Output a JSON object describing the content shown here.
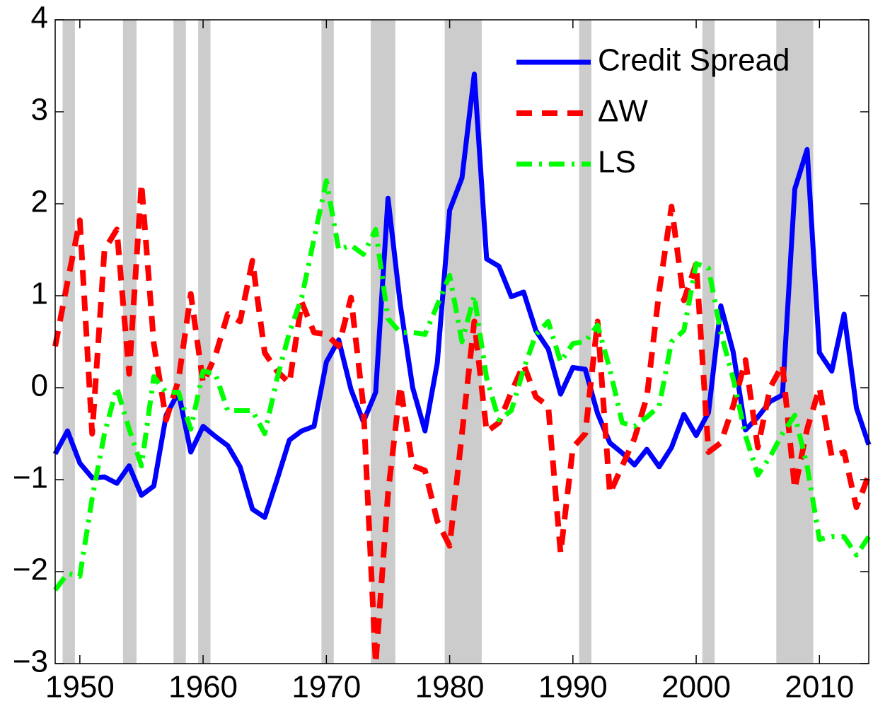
{
  "chart_data": {
    "type": "line",
    "x": [
      1948,
      1949,
      1950,
      1951,
      1952,
      1953,
      1954,
      1955,
      1956,
      1957,
      1958,
      1959,
      1960,
      1961,
      1962,
      1963,
      1964,
      1965,
      1966,
      1967,
      1968,
      1969,
      1970,
      1971,
      1972,
      1973,
      1974,
      1975,
      1976,
      1977,
      1978,
      1979,
      1980,
      1981,
      1982,
      1983,
      1984,
      1985,
      1986,
      1987,
      1988,
      1989,
      1990,
      1991,
      1992,
      1993,
      1994,
      1995,
      1996,
      1997,
      1998,
      1999,
      2000,
      2001,
      2002,
      2003,
      2004,
      2005,
      2006,
      2007,
      2008,
      2009,
      2010,
      2011,
      2012,
      2013,
      2014
    ],
    "series": [
      {
        "name": "Credit Spread",
        "color": "#0000ff",
        "style": "solid",
        "values": [
          -0.72,
          -0.47,
          -0.82,
          -0.98,
          -0.97,
          -1.04,
          -0.85,
          -1.17,
          -1.07,
          -0.3,
          -0.05,
          -0.7,
          -0.42,
          -0.53,
          -0.63,
          -0.86,
          -1.32,
          -1.41,
          -1.0,
          -0.57,
          -0.47,
          -0.42,
          0.28,
          0.52,
          -0.02,
          -0.37,
          -0.05,
          2.06,
          0.9,
          0.0,
          -0.47,
          0.27,
          1.93,
          2.28,
          3.41,
          1.4,
          1.32,
          0.99,
          1.04,
          0.62,
          0.42,
          -0.07,
          0.22,
          0.2,
          -0.28,
          -0.6,
          -0.71,
          -0.84,
          -0.67,
          -0.86,
          -0.65,
          -0.29,
          -0.52,
          -0.27,
          0.89,
          0.39,
          -0.46,
          -0.32,
          -0.15,
          -0.08,
          2.16,
          2.59,
          0.38,
          0.18,
          0.8,
          -0.22,
          -0.62
        ]
      },
      {
        "name": "ΔW",
        "color": "#ff0000",
        "style": "dashed",
        "values": [
          0.45,
          1.15,
          1.82,
          -0.5,
          1.5,
          1.72,
          0.15,
          2.22,
          0.48,
          -0.35,
          0.08,
          1.02,
          0.05,
          0.35,
          0.8,
          0.72,
          1.38,
          0.38,
          0.18,
          0.05,
          0.93,
          0.6,
          0.58,
          0.45,
          0.98,
          -0.2,
          -3.0,
          -1.15,
          0.02,
          -0.85,
          -0.9,
          -1.45,
          -1.72,
          -0.5,
          0.72,
          -0.48,
          -0.38,
          -0.05,
          0.25,
          -0.1,
          -0.2,
          -1.8,
          -0.65,
          -0.5,
          0.72,
          -1.15,
          -0.85,
          -0.55,
          -0.1,
          1.05,
          1.97,
          0.95,
          1.35,
          -0.7,
          -0.6,
          -0.2,
          0.3,
          -0.65,
          0.0,
          0.25,
          -1.1,
          -0.45,
          0.0,
          -0.75,
          -0.7,
          -1.3,
          -0.95
        ]
      },
      {
        "name": "LS",
        "color": "#00ff00",
        "style": "dashdot",
        "values": [
          -2.2,
          -2.02,
          -2.05,
          -1.2,
          -0.5,
          0.0,
          -0.45,
          -0.85,
          0.12,
          -0.05,
          -0.05,
          -0.45,
          0.18,
          0.15,
          -0.25,
          -0.25,
          -0.25,
          -0.5,
          0.1,
          0.6,
          0.98,
          1.62,
          2.25,
          1.5,
          1.55,
          1.45,
          1.72,
          0.75,
          0.6,
          0.6,
          0.58,
          0.9,
          1.22,
          0.5,
          1.0,
          0.1,
          -0.35,
          -0.25,
          0.2,
          0.58,
          0.72,
          0.28,
          0.48,
          0.5,
          0.68,
          0.2,
          -0.38,
          -0.42,
          -0.32,
          -0.2,
          0.5,
          0.62,
          1.35,
          1.3,
          0.6,
          0.1,
          -0.52,
          -0.95,
          -0.75,
          -0.5,
          -0.3,
          -0.85,
          -1.65,
          -1.62,
          -1.62,
          -1.82,
          -1.62
        ]
      }
    ],
    "recessions": [
      [
        1948.6,
        1949.6
      ],
      [
        1953.5,
        1954.6
      ],
      [
        1957.6,
        1958.6
      ],
      [
        1959.6,
        1960.6
      ],
      [
        1969.6,
        1970.6
      ],
      [
        1973.6,
        1975.6
      ],
      [
        1979.6,
        1982.6
      ],
      [
        1990.5,
        1991.5
      ],
      [
        2000.5,
        2001.5
      ],
      [
        2006.5,
        2009.5
      ]
    ],
    "recession_color": "#cccccc",
    "xlim": [
      1948,
      2014
    ],
    "ylim": [
      -3,
      4
    ],
    "xticks": [
      1950,
      1960,
      1970,
      1980,
      1990,
      2000,
      2010
    ],
    "yticks": [
      {
        "value": -3,
        "label": "−3"
      },
      {
        "value": -2,
        "label": "−2"
      },
      {
        "value": -1,
        "label": "−1"
      },
      0,
      1,
      2,
      3,
      4
    ],
    "legend": "upper right"
  }
}
